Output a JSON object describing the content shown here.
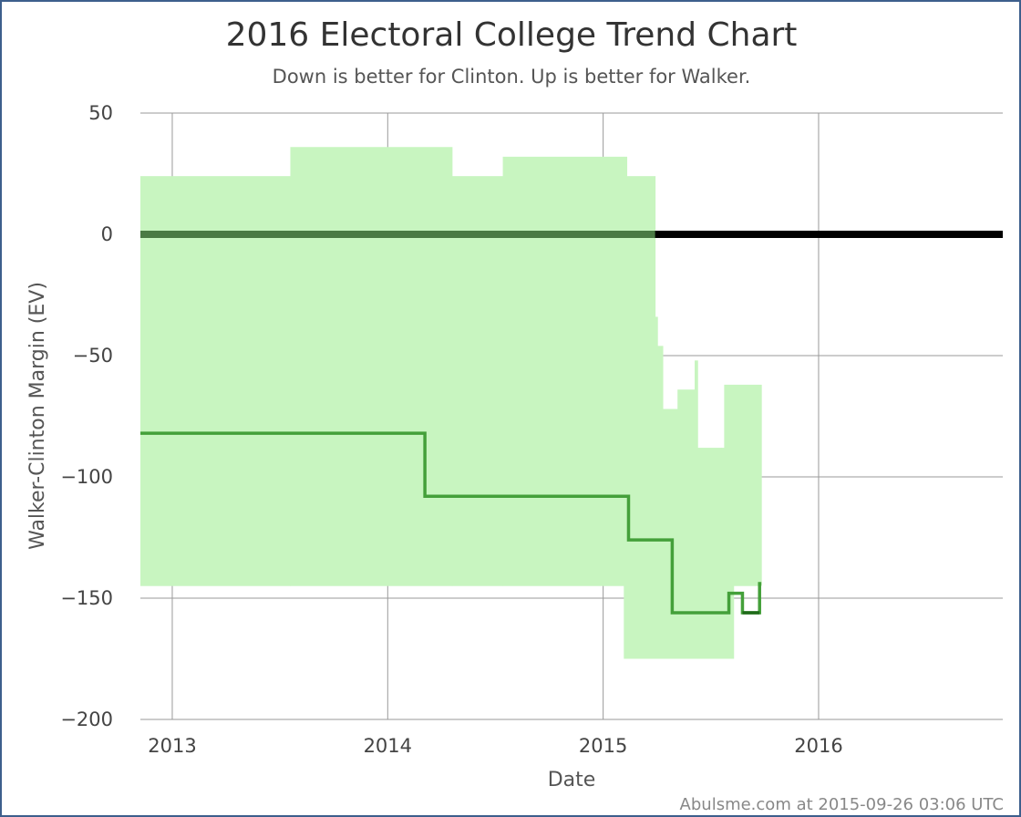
{
  "chart_data": {
    "type": "area",
    "title": "2016 Electoral College Trend Chart",
    "subtitle": "Down is better for Clinton. Up is better for Walker.",
    "xlabel": "Date",
    "ylabel": "Walker-Clinton Margin (EV)",
    "credit": "Abulsme.com at 2015-09-26 03:06 UTC",
    "ylim": [
      -200,
      50
    ],
    "xlim": [
      "2012-11-08",
      "2016-11-08"
    ],
    "y_ticks": [
      50,
      0,
      -50,
      -100,
      -150,
      -200
    ],
    "y_tick_labels": [
      "50",
      "0",
      "−50",
      "−100",
      "−150",
      "−200"
    ],
    "x_ticks": [
      {
        "date": "2013-01-01",
        "label": "2013"
      },
      {
        "date": "2014-01-01",
        "label": "2014"
      },
      {
        "date": "2015-01-01",
        "label": "2015"
      },
      {
        "date": "2016-01-01",
        "label": "2016"
      }
    ],
    "grid": true,
    "colors": {
      "band": "#c8f5c0",
      "line": "#44a03a",
      "line_dark": "#1f6a1a",
      "zero_line": "#000000",
      "grid": "#9a9a9a",
      "text": "#444444",
      "credit": "#888888"
    },
    "series": [
      {
        "range_steps": [
          {
            "date": "2012-11-08",
            "high": 24,
            "low": -145
          },
          {
            "date": "2013-07-20",
            "high": 36,
            "low": -145
          },
          {
            "date": "2014-04-20",
            "high": 24,
            "low": -145
          },
          {
            "date": "2014-07-15",
            "high": 32,
            "low": -145
          },
          {
            "date": "2015-02-05",
            "high": 32,
            "low": -175
          },
          {
            "date": "2015-02-10",
            "high": 24,
            "low": -175
          },
          {
            "date": "2015-03-30",
            "high": -34,
            "low": -175
          },
          {
            "date": "2015-04-03",
            "high": -46,
            "low": -175
          },
          {
            "date": "2015-04-12",
            "high": -72,
            "low": -175
          },
          {
            "date": "2015-05-07",
            "high": -64,
            "low": -175
          },
          {
            "date": "2015-06-05",
            "high": -52,
            "low": -175
          },
          {
            "date": "2015-06-10",
            "high": -88,
            "low": -175
          },
          {
            "date": "2015-07-20",
            "high": -88,
            "low": -175
          },
          {
            "date": "2015-07-25",
            "high": -62,
            "low": -175
          },
          {
            "date": "2015-08-10",
            "high": -62,
            "low": -145
          },
          {
            "date": "2015-09-26",
            "high": -62,
            "low": -145
          }
        ],
        "steps": [
          {
            "date": "2012-11-08",
            "value": -82
          },
          {
            "date": "2014-03-05",
            "value": -108
          },
          {
            "date": "2015-02-13",
            "value": -126
          },
          {
            "date": "2015-04-28",
            "value": -156
          },
          {
            "date": "2015-08-02",
            "value": -148
          },
          {
            "date": "2015-08-25",
            "value": -156
          },
          {
            "date": "2015-09-23",
            "value": -144
          },
          {
            "date": "2015-09-26",
            "value": -144
          }
        ],
        "dark_steps": [
          {
            "date": "2015-08-25",
            "value": -156
          },
          {
            "date": "2015-09-23",
            "value": -156
          }
        ]
      }
    ],
    "zero_line_overlay_end": "2015-03-30"
  }
}
